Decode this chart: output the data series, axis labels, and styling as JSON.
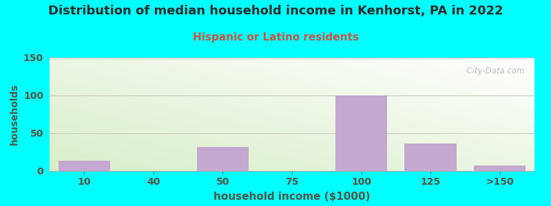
{
  "title": "Distribution of median household income in Kenhorst, PA in 2022",
  "subtitle": "Hispanic or Latino residents",
  "xlabel": "household income ($1000)",
  "ylabel": "households",
  "background_outer": "#00FFFF",
  "bar_color": "#c4a8d0",
  "title_color": "#2a2a2a",
  "subtitle_color": "#cc5544",
  "axis_label_color": "#555544",
  "tick_color": "#555544",
  "watermark": "  City-Data.com",
  "categories": [
    "10",
    "40",
    "50",
    "75",
    "100",
    "125",
    ">150"
  ],
  "values": [
    14,
    0,
    32,
    0,
    100,
    36,
    7
  ],
  "ylim": [
    0,
    150
  ],
  "yticks": [
    0,
    50,
    100,
    150
  ],
  "grid_color": "#ccccbb",
  "figsize": [
    8.0,
    3.0
  ],
  "dpi": 100,
  "title_fontsize": 13,
  "subtitle_fontsize": 11,
  "xlabel_fontsize": 11,
  "ylabel_fontsize": 10,
  "tick_fontsize": 10
}
